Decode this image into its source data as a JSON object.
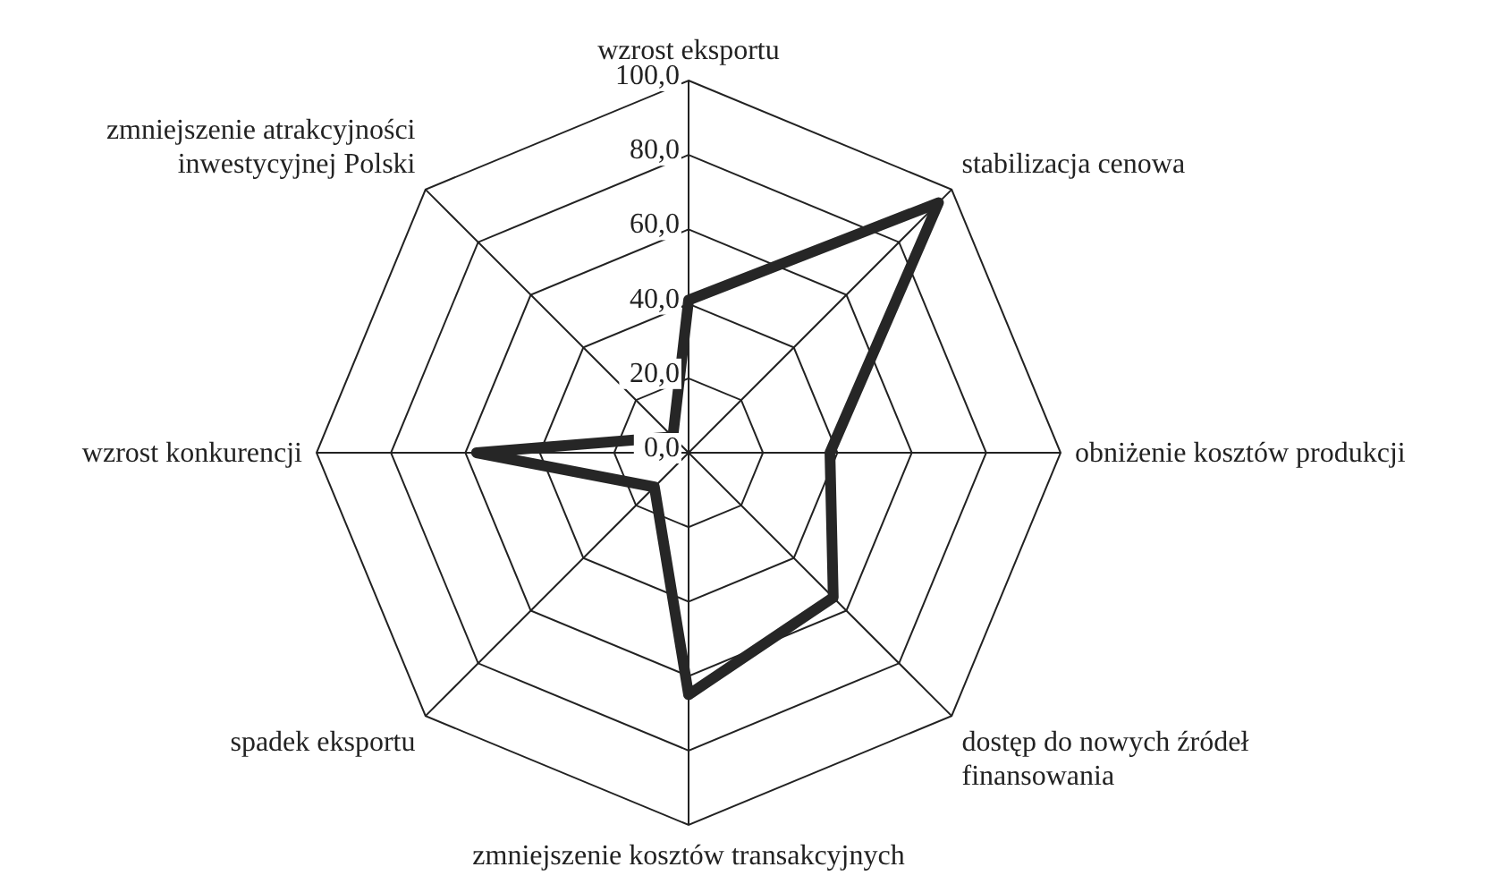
{
  "chart_data": {
    "type": "radar",
    "categories": [
      "wzrost eksportu",
      "stabilizacja cenowa",
      "obniżenie kosztów produkcji",
      "dostęp do nowych źródeł finansowania",
      "zmniejszenie kosztów transakcyjnych",
      "spadek eksportu",
      "wzrost konkurencji",
      "zmniejszenie atrakcyjności inwestycyjnej Polski"
    ],
    "series": [
      {
        "color": "#262626",
        "values": [
          41,
          95,
          38,
          55,
          65,
          13,
          57,
          6
        ]
      }
    ],
    "ylim": [
      0,
      100
    ],
    "yticks": [
      {
        "value": 0,
        "label": "0,0"
      },
      {
        "value": 20,
        "label": "20,0"
      },
      {
        "value": 40,
        "label": "40,0"
      },
      {
        "value": 60,
        "label": "60,0"
      },
      {
        "value": 80,
        "label": "80,0"
      },
      {
        "value": 100,
        "label": "100,0"
      }
    ],
    "grid": true,
    "marker": "none",
    "line_style": "solid"
  }
}
